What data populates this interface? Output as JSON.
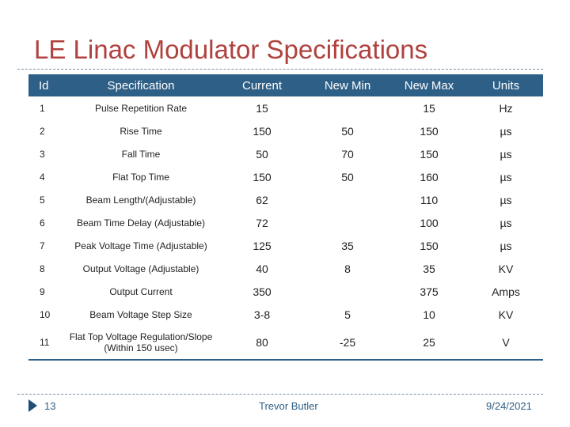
{
  "slide": {
    "title": "LE Linac Modulator Specifications",
    "page_number": "13",
    "author": "Trevor Butler",
    "date": "9/24/2021"
  },
  "table": {
    "headers": {
      "id": "Id",
      "spec": "Specification",
      "current": "Current",
      "new_min": "New Min",
      "new_max": "New Max",
      "units": "Units"
    },
    "rows": [
      {
        "id": "1",
        "spec": "Pulse Repetition Rate",
        "current": "15",
        "new_min": "",
        "new_max": "15",
        "units": "Hz"
      },
      {
        "id": "2",
        "spec": "Rise Time",
        "current": "150",
        "new_min": "50",
        "new_max": "150",
        "units": "µs"
      },
      {
        "id": "3",
        "spec": "Fall Time",
        "current": "50",
        "new_min": "70",
        "new_max": "150",
        "units": "µs"
      },
      {
        "id": "4",
        "spec": "Flat Top Time",
        "current": "150",
        "new_min": "50",
        "new_max": "160",
        "units": "µs"
      },
      {
        "id": "5",
        "spec": "Beam Length/(Adjustable)",
        "current": "62",
        "new_min": "",
        "new_max": "110",
        "units": "µs"
      },
      {
        "id": "6",
        "spec": "Beam Time Delay (Adjustable)",
        "current": "72",
        "new_min": "",
        "new_max": "100",
        "units": "µs"
      },
      {
        "id": "7",
        "spec": "Peak Voltage Time (Adjustable)",
        "current": "125",
        "new_min": "35",
        "new_max": "150",
        "units": "µs"
      },
      {
        "id": "8",
        "spec": "Output Voltage (Adjustable)",
        "current": "40",
        "new_min": "8",
        "new_max": "35",
        "units": "KV"
      },
      {
        "id": "9",
        "spec": "Output Current",
        "current": "350",
        "new_min": "",
        "new_max": "375",
        "units": "Amps"
      },
      {
        "id": "10",
        "spec": "Beam Voltage Step Size",
        "current": "3-8",
        "new_min": "5",
        "new_max": "10",
        "units": "KV"
      },
      {
        "id": "11",
        "spec": "Flat Top Voltage Regulation/Slope (Within 150 usec)",
        "current": "80",
        "new_min": "-25",
        "new_max": "25",
        "units": "V"
      }
    ]
  }
}
